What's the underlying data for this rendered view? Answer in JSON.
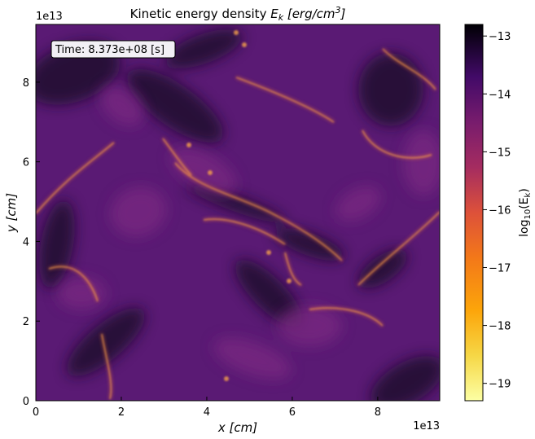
{
  "chart_data": {
    "type": "heatmap",
    "title": "Kinetic energy density E_k [erg/cm^3]",
    "title_main": "Kinetic energy density ",
    "title_sym": "E",
    "title_sub": "k",
    "title_unit": " [erg/cm",
    "title_exp": "3",
    "title_close": "]",
    "annotation": "Time: 8.373e+08 [s]",
    "xlabel": "x [cm]",
    "xlabel_var": "x",
    "xlabel_unit": " [cm]",
    "ylabel": "y [cm]",
    "ylabel_var": "y",
    "ylabel_unit": " [cm]",
    "x_offset": "1e13",
    "y_offset": "1e13",
    "xlim": [
      0,
      9.45
    ],
    "ylim": [
      0,
      9.45
    ],
    "xticks": [
      0,
      2,
      4,
      6,
      8
    ],
    "xtick_labels": [
      "0",
      "2",
      "4",
      "6",
      "8"
    ],
    "yticks": [
      0,
      2,
      4,
      6,
      8
    ],
    "ytick_labels": [
      "0",
      "2",
      "4",
      "6",
      "8"
    ],
    "colormap": "inferno_r",
    "colorbar": {
      "label": "log10(E_k)",
      "label_prefix": "log",
      "label_sub": "10",
      "label_paren": "(E",
      "label_k": "k",
      "label_close": ")",
      "range": [
        -19.3,
        -12.8
      ],
      "ticks": [
        -13,
        -14,
        -15,
        -16,
        -17,
        -18,
        -19
      ],
      "tick_labels": [
        "−13",
        "−14",
        "−15",
        "−16",
        "−17",
        "−18",
        "−19"
      ],
      "stops": [
        {
          "v": 0.0,
          "color": "#fcffa4"
        },
        {
          "v": 0.12,
          "color": "#f6d746"
        },
        {
          "v": 0.24,
          "color": "#fca50a"
        },
        {
          "v": 0.38,
          "color": "#f37819"
        },
        {
          "v": 0.5,
          "color": "#dd513a"
        },
        {
          "v": 0.62,
          "color": "#a52c60"
        },
        {
          "v": 0.74,
          "color": "#781c6d"
        },
        {
          "v": 0.86,
          "color": "#420a68"
        },
        {
          "v": 1.0,
          "color": "#000004"
        }
      ]
    },
    "field_base_color": "#5a1a74",
    "dark_color": "#1e0a2e",
    "mid_color": "#7a2a82",
    "bright_color": "#f07a3a"
  }
}
